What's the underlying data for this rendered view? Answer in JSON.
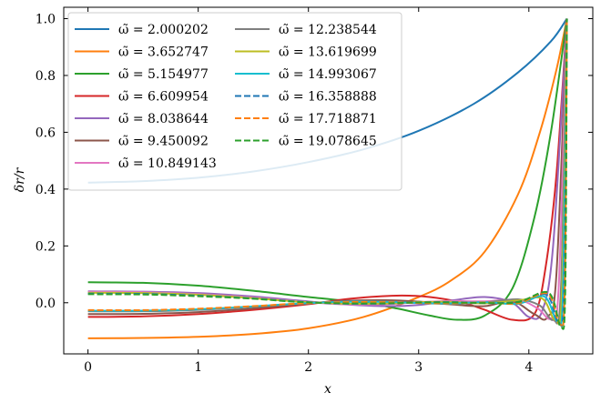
{
  "chart_data": {
    "type": "line",
    "title": "",
    "xlabel": "x",
    "ylabel": "δr/r",
    "xlim": [
      -0.22,
      4.58
    ],
    "ylim": [
      -0.18,
      1.04
    ],
    "x_ticks": [
      0,
      1,
      2,
      3,
      4
    ],
    "y_ticks": [
      0.0,
      0.2,
      0.4,
      0.6,
      0.8,
      1.0
    ],
    "x_tick_labels": [
      "0",
      "1",
      "2",
      "3",
      "4"
    ],
    "y_tick_labels": [
      "0.0",
      "0.2",
      "0.4",
      "0.6",
      "0.8",
      "1.0"
    ],
    "grid": false,
    "legend_position": "top-left",
    "legend_columns": 2,
    "series": [
      {
        "name": "ω̃ = 2.000202",
        "color": "#1f77b4",
        "dash": false,
        "points": [
          [
            0,
            0.423
          ],
          [
            0.5,
            0.428
          ],
          [
            1.0,
            0.44
          ],
          [
            1.5,
            0.462
          ],
          [
            2.0,
            0.495
          ],
          [
            2.5,
            0.54
          ],
          [
            3.0,
            0.605
          ],
          [
            3.5,
            0.7
          ],
          [
            3.9,
            0.81
          ],
          [
            4.2,
            0.92
          ],
          [
            4.345,
            1.0
          ]
        ]
      },
      {
        "name": "ω̃ = 3.652747",
        "color": "#ff7f0e",
        "dash": false,
        "points": [
          [
            0,
            -0.125
          ],
          [
            0.5,
            -0.124
          ],
          [
            1.0,
            -0.12
          ],
          [
            1.5,
            -0.11
          ],
          [
            2.0,
            -0.09
          ],
          [
            2.5,
            -0.05
          ],
          [
            3.0,
            0.02
          ],
          [
            3.3,
            0.08
          ],
          [
            3.6,
            0.18
          ],
          [
            3.9,
            0.38
          ],
          [
            4.1,
            0.6
          ],
          [
            4.25,
            0.82
          ],
          [
            4.345,
            1.0
          ]
        ]
      },
      {
        "name": "ω̃ = 5.154977",
        "color": "#2ca02c",
        "dash": false,
        "points": [
          [
            0,
            0.072
          ],
          [
            0.5,
            0.07
          ],
          [
            1.0,
            0.06
          ],
          [
            1.5,
            0.042
          ],
          [
            2.0,
            0.02
          ],
          [
            2.5,
            0.0
          ],
          [
            2.8,
            -0.02
          ],
          [
            3.1,
            -0.045
          ],
          [
            3.35,
            -0.06
          ],
          [
            3.6,
            -0.045
          ],
          [
            3.85,
            0.05
          ],
          [
            4.05,
            0.3
          ],
          [
            4.2,
            0.6
          ],
          [
            4.345,
            1.0
          ]
        ]
      },
      {
        "name": "ω̃ = 6.609954",
        "color": "#d62728",
        "dash": false,
        "points": [
          [
            0,
            -0.05
          ],
          [
            0.5,
            -0.048
          ],
          [
            1.0,
            -0.04
          ],
          [
            1.5,
            -0.025
          ],
          [
            2.0,
            -0.005
          ],
          [
            2.4,
            0.015
          ],
          [
            2.8,
            0.025
          ],
          [
            3.1,
            0.02
          ],
          [
            3.4,
            0.0
          ],
          [
            3.6,
            -0.025
          ],
          [
            3.85,
            -0.06
          ],
          [
            4.05,
            -0.04
          ],
          [
            4.15,
            0.12
          ],
          [
            4.25,
            0.45
          ],
          [
            4.345,
            1.0
          ]
        ]
      },
      {
        "name": "ω̃ = 8.038644",
        "color": "#9467bd",
        "dash": false,
        "points": [
          [
            0,
            0.04
          ],
          [
            0.5,
            0.039
          ],
          [
            1.0,
            0.034
          ],
          [
            1.5,
            0.022
          ],
          [
            1.9,
            0.008
          ],
          [
            2.3,
            -0.005
          ],
          [
            2.7,
            -0.012
          ],
          [
            3.0,
            -0.008
          ],
          [
            3.3,
            0.008
          ],
          [
            3.6,
            0.02
          ],
          [
            3.85,
            0.0
          ],
          [
            4.0,
            -0.05
          ],
          [
            4.12,
            -0.03
          ],
          [
            4.22,
            0.2
          ],
          [
            4.345,
            1.0
          ]
        ]
      },
      {
        "name": "ω̃ = 9.450092",
        "color": "#8c564b",
        "dash": false,
        "points": [
          [
            0,
            -0.04
          ],
          [
            0.5,
            -0.039
          ],
          [
            1.0,
            -0.033
          ],
          [
            1.5,
            -0.02
          ],
          [
            1.9,
            -0.006
          ],
          [
            2.3,
            0.006
          ],
          [
            2.7,
            0.009
          ],
          [
            3.0,
            0.004
          ],
          [
            3.3,
            -0.006
          ],
          [
            3.6,
            -0.012
          ],
          [
            3.85,
            0.005
          ],
          [
            4.05,
            -0.04
          ],
          [
            4.17,
            -0.05
          ],
          [
            4.25,
            0.1
          ],
          [
            4.345,
            1.0
          ]
        ]
      },
      {
        "name": "ω̃ = 10.849143",
        "color": "#e377c2",
        "dash": false,
        "points": [
          [
            0,
            0.038
          ],
          [
            0.5,
            0.037
          ],
          [
            1.0,
            0.03
          ],
          [
            1.5,
            0.018
          ],
          [
            1.9,
            0.005
          ],
          [
            2.3,
            -0.005
          ],
          [
            2.7,
            -0.005
          ],
          [
            3.0,
            0.002
          ],
          [
            3.3,
            0.006
          ],
          [
            3.6,
            0.005
          ],
          [
            3.9,
            0.01
          ],
          [
            4.08,
            -0.02
          ],
          [
            4.2,
            -0.055
          ],
          [
            4.27,
            0.05
          ],
          [
            4.345,
            1.0
          ]
        ]
      },
      {
        "name": "ω̃ = 12.238544",
        "color": "#7f7f7f",
        "dash": false,
        "points": [
          [
            0,
            -0.03
          ],
          [
            0.5,
            -0.03
          ],
          [
            1.0,
            -0.025
          ],
          [
            1.5,
            -0.014
          ],
          [
            1.9,
            -0.004
          ],
          [
            2.3,
            0.004
          ],
          [
            2.7,
            0.004
          ],
          [
            3.0,
            -0.001
          ],
          [
            3.3,
            -0.004
          ],
          [
            3.6,
            0.001
          ],
          [
            3.9,
            0.012
          ],
          [
            4.1,
            -0.01
          ],
          [
            4.22,
            -0.06
          ],
          [
            4.29,
            0.04
          ],
          [
            4.345,
            1.0
          ]
        ]
      },
      {
        "name": "ω̃ = 13.619699",
        "color": "#bcbd22",
        "dash": false,
        "points": [
          [
            0,
            0.035
          ],
          [
            0.5,
            0.034
          ],
          [
            1.0,
            0.028
          ],
          [
            1.5,
            0.016
          ],
          [
            1.9,
            0.004
          ],
          [
            2.3,
            -0.003
          ],
          [
            2.7,
            -0.003
          ],
          [
            3.0,
            0.002
          ],
          [
            3.3,
            0.003
          ],
          [
            3.6,
            -0.002
          ],
          [
            3.9,
            0.008
          ],
          [
            4.12,
            0.015
          ],
          [
            4.24,
            -0.06
          ],
          [
            4.3,
            0.04
          ],
          [
            4.345,
            1.0
          ]
        ]
      },
      {
        "name": "ω̃ = 14.993067",
        "color": "#17becf",
        "dash": false,
        "points": [
          [
            0,
            -0.028
          ],
          [
            0.5,
            -0.028
          ],
          [
            1.0,
            -0.023
          ],
          [
            1.5,
            -0.013
          ],
          [
            1.9,
            -0.003
          ],
          [
            2.3,
            0.003
          ],
          [
            2.7,
            0.003
          ],
          [
            3.0,
            -0.001
          ],
          [
            3.3,
            -0.002
          ],
          [
            3.6,
            0.002
          ],
          [
            3.9,
            -0.004
          ],
          [
            4.14,
            0.022
          ],
          [
            4.26,
            -0.065
          ],
          [
            4.31,
            0.04
          ],
          [
            4.345,
            1.0
          ]
        ]
      },
      {
        "name": "ω̃ = 16.358888",
        "color": "#1f77b4",
        "dash": true,
        "points": [
          [
            0,
            0.032
          ],
          [
            0.5,
            0.031
          ],
          [
            1.0,
            0.025
          ],
          [
            1.5,
            0.015
          ],
          [
            1.9,
            0.004
          ],
          [
            2.3,
            -0.003
          ],
          [
            2.7,
            -0.003
          ],
          [
            3.0,
            0.001
          ],
          [
            3.3,
            0.002
          ],
          [
            3.6,
            -0.001
          ],
          [
            3.9,
            0.003
          ],
          [
            4.16,
            0.028
          ],
          [
            4.27,
            -0.07
          ],
          [
            4.32,
            0.04
          ],
          [
            4.345,
            1.0
          ]
        ]
      },
      {
        "name": "ω̃ = 17.718871",
        "color": "#ff7f0e",
        "dash": true,
        "points": [
          [
            0,
            -0.026
          ],
          [
            0.5,
            -0.026
          ],
          [
            1.0,
            -0.021
          ],
          [
            1.5,
            -0.012
          ],
          [
            1.9,
            -0.003
          ],
          [
            2.3,
            0.002
          ],
          [
            2.7,
            0.002
          ],
          [
            3.0,
            -0.001
          ],
          [
            3.3,
            -0.002
          ],
          [
            3.6,
            0.001
          ],
          [
            3.9,
            -0.002
          ],
          [
            4.17,
            0.032
          ],
          [
            4.28,
            -0.075
          ],
          [
            4.325,
            0.04
          ],
          [
            4.345,
            1.0
          ]
        ]
      },
      {
        "name": "ω̃ = 19.078645",
        "color": "#2ca02c",
        "dash": true,
        "points": [
          [
            0,
            0.03
          ],
          [
            0.5,
            0.029
          ],
          [
            1.0,
            0.023
          ],
          [
            1.5,
            0.014
          ],
          [
            1.9,
            0.003
          ],
          [
            2.3,
            -0.002
          ],
          [
            2.7,
            -0.002
          ],
          [
            3.0,
            0.001
          ],
          [
            3.3,
            0.001
          ],
          [
            3.6,
            -0.001
          ],
          [
            3.9,
            0.002
          ],
          [
            4.18,
            0.035
          ],
          [
            4.29,
            -0.085
          ],
          [
            4.33,
            0.04
          ],
          [
            4.345,
            1.0
          ]
        ]
      }
    ]
  }
}
